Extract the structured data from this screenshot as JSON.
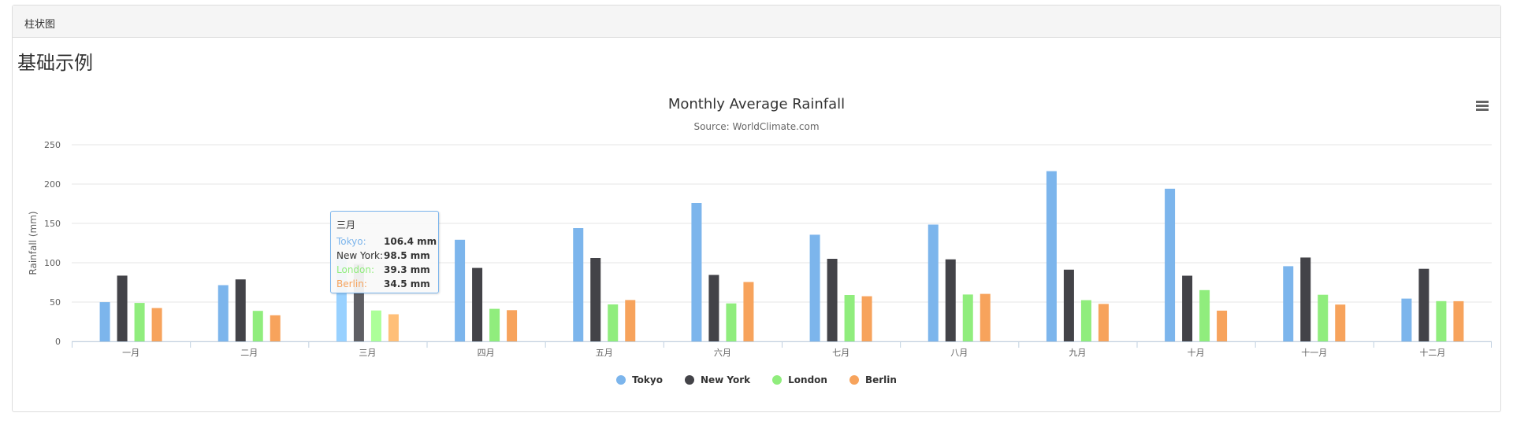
{
  "panel": {
    "heading": "柱状图"
  },
  "section": {
    "title": "基础示例"
  },
  "chart_data": {
    "type": "bar",
    "title": "Monthly Average Rainfall",
    "subtitle": "Source: WorldClimate.com",
    "ylabel": "Rainfall (mm)",
    "ylim": [
      0,
      250
    ],
    "yticks": [
      0,
      50,
      100,
      150,
      200,
      250
    ],
    "grid": true,
    "legend_position": "bottom-center",
    "categories": [
      "一月",
      "二月",
      "三月",
      "四月",
      "五月",
      "六月",
      "七月",
      "八月",
      "九月",
      "十月",
      "十一月",
      "十二月"
    ],
    "series": [
      {
        "name": "Tokyo",
        "color": "#7cb5ec",
        "values": [
          49.9,
          71.5,
          106.4,
          129.2,
          144.0,
          176.0,
          135.6,
          148.5,
          216.4,
          194.1,
          95.6,
          54.4
        ]
      },
      {
        "name": "New York",
        "color": "#434348",
        "values": [
          83.6,
          78.8,
          98.5,
          93.4,
          106.0,
          84.5,
          105.0,
          104.3,
          91.2,
          83.5,
          106.6,
          92.3
        ]
      },
      {
        "name": "London",
        "color": "#90ed7d",
        "values": [
          48.9,
          38.8,
          39.3,
          41.4,
          47.0,
          48.3,
          59.0,
          59.6,
          52.4,
          65.2,
          59.3,
          51.2
        ]
      },
      {
        "name": "Berlin",
        "color": "#f7a35c",
        "values": [
          42.4,
          33.2,
          34.5,
          39.7,
          52.6,
          75.5,
          57.4,
          60.4,
          47.6,
          39.1,
          46.8,
          51.1
        ]
      }
    ],
    "tooltip": {
      "category": "三月",
      "rows": [
        {
          "name": "Tokyo:",
          "value": "106.4 mm",
          "color": "#7cb5ec"
        },
        {
          "name": "New York:",
          "value": "98.5 mm",
          "color": "#333333"
        },
        {
          "name": "London:",
          "value": "39.3 mm",
          "color": "#90ed7d"
        },
        {
          "name": "Berlin:",
          "value": "34.5 mm",
          "color": "#f7a35c"
        }
      ]
    }
  },
  "icons": {
    "menu": "hamburger-menu-icon"
  }
}
